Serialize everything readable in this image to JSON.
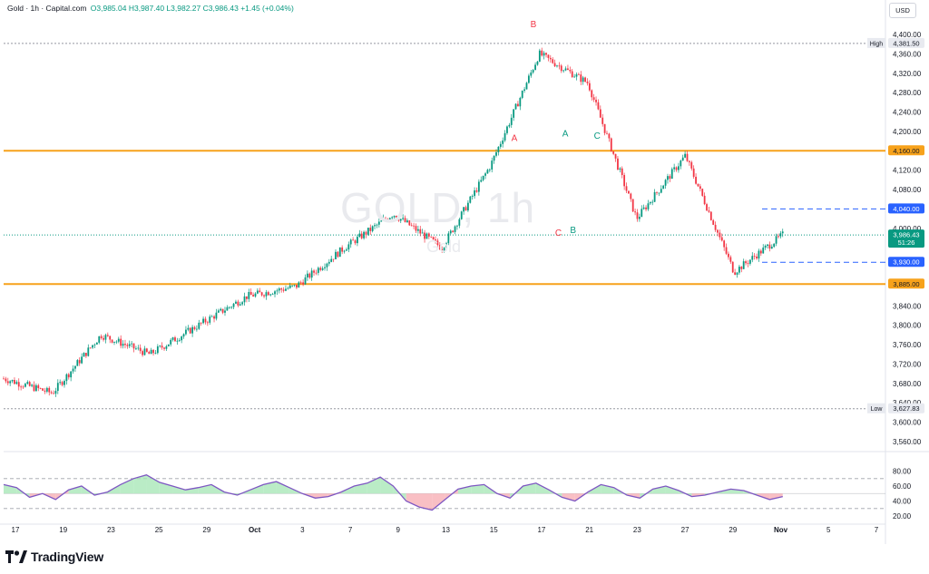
{
  "header": {
    "title": "Gold · 1h · Capital.com",
    "ohlc": "O3,985.04 H3,987.40 L3,982.27 C3,986.43 +1.45 (+0.04%)"
  },
  "currency_button": "USD",
  "watermark": {
    "symbol": "GOLD, 1h",
    "name": "Gold"
  },
  "logo_text": "TradingView",
  "colors": {
    "up": "#089981",
    "down": "#f23645",
    "orange": "#f7a21b",
    "blue": "#2962ff",
    "rsi_line": "#7e57c2",
    "rsi_fill_up": "#a3e6b3",
    "rsi_fill_down": "#f7a9b0"
  },
  "chart_data": [
    {
      "type": "candlestick",
      "title": "Gold · 1h · Capital.com",
      "y_axis": {
        "range": [
          3545,
          4415
        ],
        "tick_labels": [
          "4,400.00",
          "4,360.00",
          "4,320.00",
          "4,280.00",
          "4,240.00",
          "4,200.00",
          "4,120.00",
          "4,080.00",
          "4,000.00",
          "3,840.00",
          "3,800.00",
          "3,760.00",
          "3,720.00",
          "3,680.00",
          "3,640.00",
          "3,600.00",
          "3,560.00"
        ],
        "tick_values": [
          4400,
          4360,
          4320,
          4280,
          4240,
          4200,
          4120,
          4080,
          4000,
          3840,
          3800,
          3760,
          3720,
          3680,
          3640,
          3600,
          3560
        ]
      },
      "x_axis": {
        "tick_labels": [
          "17",
          "19",
          "23",
          "25",
          "29",
          "Oct",
          "3",
          "7",
          "9",
          "13",
          "15",
          "17",
          "21",
          "23",
          "27",
          "29",
          "Nov",
          "5",
          "7"
        ]
      },
      "price_path": {
        "labels": [
          "17",
          "19",
          "23",
          "25",
          "29",
          "Oct",
          "3",
          "7",
          "9",
          "13",
          "15",
          "17",
          "21",
          "23",
          "27",
          "29",
          "Nov"
        ],
        "closes": [
          3690,
          3660,
          3780,
          3740,
          3800,
          3860,
          3880,
          3960,
          4030,
          3960,
          4130,
          4360,
          4300,
          4020,
          4150,
          3910,
          3986.43
        ]
      },
      "horizontal_levels": [
        {
          "label": "High",
          "price": 4381.5,
          "text": "4,381.50",
          "style": "dotted"
        },
        {
          "label": "",
          "price": 4160,
          "text": "4,160.00",
          "style": "orange"
        },
        {
          "label": "",
          "price": 4040,
          "text": "4,040.00",
          "style": "blue-dashed"
        },
        {
          "label": "",
          "price": 3986.43,
          "text": "3,986.43",
          "sub": "51:26",
          "style": "current"
        },
        {
          "label": "",
          "price": 3930,
          "text": "3,930.00",
          "style": "blue-dashed"
        },
        {
          "label": "",
          "price": 3885,
          "text": "3,885.00",
          "style": "orange"
        },
        {
          "label": "Low",
          "price": 3627.83,
          "text": "3,627.83",
          "style": "dotted"
        }
      ],
      "wave_labels": [
        {
          "text": "A",
          "color": "red",
          "t": 0.592,
          "price": 4180
        },
        {
          "text": "B",
          "color": "red",
          "t": 0.614,
          "price": 4415
        },
        {
          "text": "C",
          "color": "red",
          "t": 0.643,
          "price": 3985
        },
        {
          "text": "A",
          "color": "green",
          "t": 0.651,
          "price": 4190
        },
        {
          "text": "B",
          "color": "green",
          "t": 0.66,
          "price": 3990
        },
        {
          "text": "C",
          "color": "green",
          "t": 0.688,
          "price": 4185
        }
      ]
    },
    {
      "type": "line",
      "indicator": "RSI",
      "y_axis": {
        "range": [
          14,
          94
        ],
        "tick_labels": [
          "80.00",
          "60.00",
          "40.00",
          "20.00"
        ],
        "tick_values": [
          80,
          60,
          40,
          20
        ]
      },
      "levels": [
        70,
        50,
        30
      ],
      "series": [
        {
          "values": [
            62,
            58,
            45,
            50,
            42,
            55,
            60,
            48,
            52,
            62,
            70,
            75,
            65,
            60,
            55,
            58,
            62,
            52,
            48,
            55,
            62,
            66,
            58,
            50,
            44,
            46,
            52,
            60,
            64,
            72,
            60,
            40,
            32,
            28,
            42,
            56,
            60,
            62,
            50,
            44,
            60,
            64,
            55,
            45,
            40,
            52,
            62,
            58,
            48,
            44,
            56,
            60,
            54,
            46,
            48,
            52,
            56,
            54,
            48,
            42,
            46
          ]
        }
      ]
    }
  ]
}
